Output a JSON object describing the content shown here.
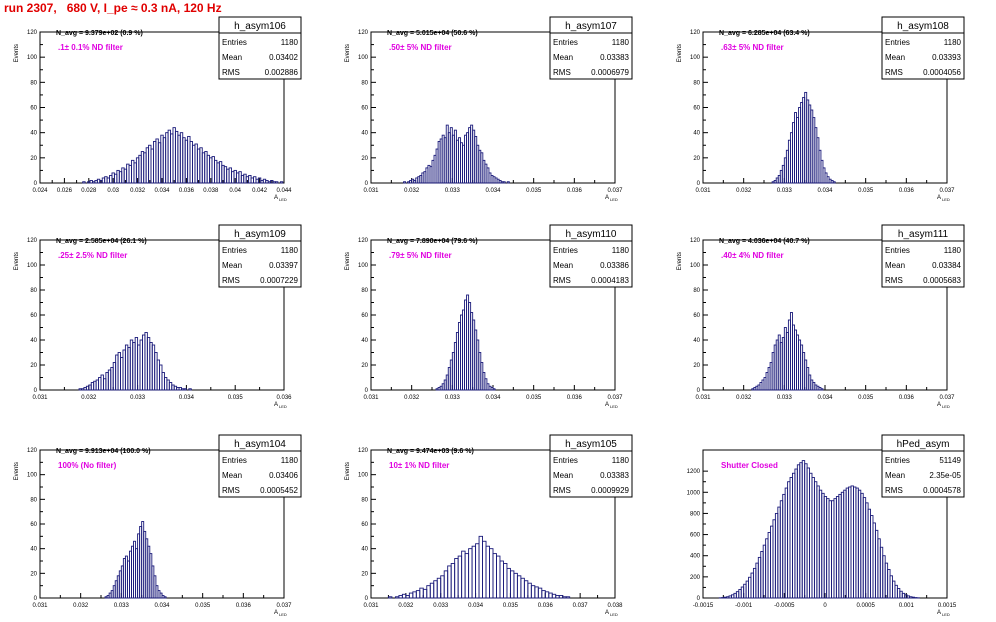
{
  "run_title": "run 2307,   680 V, I_pe ≈ 0.3 nA, 120 Hz",
  "colors": {
    "hist_line": "#1a1a7a",
    "title_red": "#e00000",
    "magenta": "#e000e0",
    "axis": "#000000"
  },
  "stat_labels": {
    "entries": "Entries",
    "mean": "Mean",
    "rms": "RMS"
  },
  "chart_data": [
    {
      "type": "bar",
      "hist_name": "h_asym106",
      "navg": "N_avg = 9.379e+02 (0.9 %)",
      "filter_label": ".1± 0.1% ND filter",
      "stats": {
        "entries": "1180",
        "mean": "0.03402",
        "rms": "0.002886"
      },
      "ylabel": "Events",
      "xlabel": "A",
      "xlabel_sub": "LED",
      "xlim": [
        0.024,
        0.044
      ],
      "ylim": [
        0,
        120
      ],
      "xticks": [
        "0.024",
        "0.026",
        "0.028",
        "0.03",
        "0.032",
        "0.034",
        "0.036",
        "0.038",
        "0.04",
        "0.042",
        "0.044"
      ],
      "yticks": [
        "0",
        "20",
        "40",
        "60",
        "80",
        "100",
        "120"
      ],
      "bin_start": 0.0275,
      "bin_width": 0.0002,
      "values": [
        1,
        0,
        1,
        2,
        1,
        2,
        3,
        2,
        4,
        5,
        4,
        6,
        8,
        7,
        10,
        9,
        12,
        11,
        15,
        14,
        18,
        16,
        20,
        22,
        25,
        24,
        28,
        30,
        27,
        33,
        35,
        32,
        38,
        36,
        40,
        42,
        39,
        44,
        41,
        38,
        40,
        36,
        34,
        37,
        33,
        30,
        31,
        27,
        28,
        24,
        25,
        22,
        20,
        21,
        18,
        16,
        17,
        14,
        13,
        11,
        12,
        9,
        10,
        8,
        9,
        6,
        7,
        5,
        6,
        4,
        5,
        3,
        4,
        2,
        3,
        2,
        1,
        2,
        1,
        1,
        0,
        1
      ]
    },
    {
      "type": "bar",
      "hist_name": "h_asym107",
      "navg": "N_avg = 5.015e+04 (50.6 %)",
      "filter_label": ".50± 5% ND filter",
      "stats": {
        "entries": "1180",
        "mean": "0.03383",
        "rms": "0.0006979"
      },
      "ylabel": "Events",
      "xlabel": "A",
      "xlabel_sub": "LED",
      "xlim": [
        0.031,
        0.037
      ],
      "ylim": [
        0,
        120
      ],
      "xticks": [
        "0.031",
        "0.032",
        "0.033",
        "0.034",
        "0.035",
        "0.036",
        "0.037"
      ],
      "yticks": [
        "0",
        "20",
        "40",
        "60",
        "80",
        "100",
        "120"
      ],
      "bin_start": 0.0318,
      "bin_width": 5e-05,
      "values": [
        1,
        0,
        1,
        2,
        3,
        2,
        4,
        5,
        6,
        8,
        9,
        12,
        14,
        13,
        18,
        22,
        27,
        33,
        35,
        38,
        36,
        46,
        40,
        44,
        38,
        42,
        34,
        36,
        32,
        30,
        38,
        40,
        44,
        46,
        42,
        37,
        30,
        26,
        24,
        18,
        15,
        12,
        8,
        6,
        5,
        4,
        3,
        2,
        1,
        1,
        0,
        1
      ]
    },
    {
      "type": "bar",
      "hist_name": "h_asym108",
      "navg": "N_avg = 6.285e+04 (63.4 %)",
      "filter_label": ".63± 5% ND filter",
      "stats": {
        "entries": "1180",
        "mean": "0.03393",
        "rms": "0.0004056"
      },
      "ylabel": "Events",
      "xlabel": "A",
      "xlabel_sub": "LED",
      "xlim": [
        0.031,
        0.037
      ],
      "ylim": [
        0,
        120
      ],
      "xticks": [
        "0.031",
        "0.032",
        "0.033",
        "0.034",
        "0.035",
        "0.036",
        "0.037"
      ],
      "yticks": [
        "0",
        "20",
        "40",
        "60",
        "80",
        "100",
        "120"
      ],
      "bin_start": 0.0327,
      "bin_width": 5e-05,
      "values": [
        1,
        2,
        4,
        6,
        10,
        14,
        20,
        26,
        34,
        40,
        48,
        56,
        52,
        60,
        64,
        68,
        72,
        66,
        62,
        58,
        52,
        44,
        36,
        26,
        18,
        12,
        8,
        5,
        3,
        2,
        1
      ]
    },
    {
      "type": "bar",
      "hist_name": "h_asym109",
      "navg": "N_avg = 2.585e+04 (26.1 %)",
      "filter_label": ".25± 2.5% ND filter",
      "stats": {
        "entries": "1180",
        "mean": "0.03397",
        "rms": "0.0007229"
      },
      "ylabel": "Events",
      "xlabel": "A",
      "xlabel_sub": "LED",
      "xlim": [
        0.031,
        0.036
      ],
      "ylim": [
        0,
        120
      ],
      "xticks": [
        "0.031",
        "0.032",
        "0.033",
        "0.034",
        "0.035",
        "0.036"
      ],
      "yticks": [
        "0",
        "20",
        "40",
        "60",
        "80",
        "100",
        "120"
      ],
      "bin_start": 0.0318,
      "bin_width": 5e-05,
      "values": [
        1,
        1,
        2,
        3,
        4,
        6,
        7,
        8,
        10,
        12,
        9,
        14,
        16,
        18,
        22,
        28,
        30,
        26,
        32,
        36,
        34,
        40,
        38,
        42,
        36,
        40,
        44,
        46,
        42,
        38,
        36,
        30,
        24,
        20,
        14,
        10,
        8,
        6,
        4,
        3,
        2,
        2,
        1,
        1,
        0,
        1
      ]
    },
    {
      "type": "bar",
      "hist_name": "h_asym110",
      "navg": "N_avg = 7.890e+04 (79.6 %)",
      "filter_label": ".79± 5% ND filter",
      "stats": {
        "entries": "1180",
        "mean": "0.03386",
        "rms": "0.0004183"
      },
      "ylabel": "Events",
      "xlabel": "A",
      "xlabel_sub": "LED",
      "xlim": [
        0.031,
        0.037
      ],
      "ylim": [
        0,
        120
      ],
      "xticks": [
        "0.031",
        "0.032",
        "0.033",
        "0.034",
        "0.035",
        "0.036",
        "0.037"
      ],
      "yticks": [
        "0",
        "20",
        "40",
        "60",
        "80",
        "100",
        "120"
      ],
      "bin_start": 0.0326,
      "bin_width": 5e-05,
      "values": [
        1,
        2,
        3,
        5,
        8,
        12,
        18,
        24,
        30,
        38,
        46,
        54,
        60,
        64,
        72,
        76,
        70,
        62,
        56,
        48,
        40,
        30,
        22,
        14,
        9,
        5,
        3,
        2,
        1
      ]
    },
    {
      "type": "bar",
      "hist_name": "h_asym111",
      "navg": "N_avg = 4.036e+04 (40.7 %)",
      "filter_label": ".40± 4% ND filter",
      "stats": {
        "entries": "1180",
        "mean": "0.03384",
        "rms": "0.0005683"
      },
      "ylabel": "Events",
      "xlabel": "A",
      "xlabel_sub": "LED",
      "xlim": [
        0.031,
        0.037
      ],
      "ylim": [
        0,
        120
      ],
      "xticks": [
        "0.031",
        "0.032",
        "0.033",
        "0.034",
        "0.035",
        "0.036",
        "0.037"
      ],
      "yticks": [
        "0",
        "20",
        "40",
        "60",
        "80",
        "100",
        "120"
      ],
      "bin_start": 0.0322,
      "bin_width": 5e-05,
      "values": [
        1,
        2,
        3,
        4,
        6,
        8,
        10,
        14,
        18,
        22,
        30,
        36,
        40,
        44,
        38,
        42,
        50,
        46,
        56,
        62,
        52,
        48,
        44,
        40,
        36,
        30,
        24,
        18,
        12,
        8,
        6,
        4,
        3,
        2,
        1
      ]
    },
    {
      "type": "bar",
      "hist_name": "h_asym104",
      "navg": "N_avg = 9.913e+04 (100.0 %)",
      "filter_label": "100% (No filter)",
      "stats": {
        "entries": "1180",
        "mean": "0.03406",
        "rms": "0.0005452"
      },
      "ylabel": "Events",
      "xlabel": "A",
      "xlabel_sub": "LED",
      "xlim": [
        0.031,
        0.037
      ],
      "ylim": [
        0,
        120
      ],
      "xticks": [
        "0.031",
        "0.032",
        "0.033",
        "0.034",
        "0.035",
        "0.036",
        "0.037"
      ],
      "yticks": [
        "0",
        "20",
        "40",
        "60",
        "80",
        "100",
        "120"
      ],
      "bin_start": 0.0326,
      "bin_width": 5e-05,
      "values": [
        1,
        2,
        4,
        6,
        10,
        14,
        18,
        22,
        26,
        32,
        34,
        30,
        38,
        42,
        46,
        40,
        52,
        58,
        62,
        54,
        48,
        42,
        36,
        26,
        18,
        10,
        6,
        4,
        2,
        1
      ]
    },
    {
      "type": "bar",
      "hist_name": "h_asym105",
      "navg": "N_avg = 9.474e+03 (9.6 %)",
      "filter_label": "10± 1% ND filter",
      "stats": {
        "entries": "1180",
        "mean": "0.03383",
        "rms": "0.0009929"
      },
      "ylabel": "Events",
      "xlabel": "A",
      "xlabel_sub": "LED",
      "xlim": [
        0.031,
        0.038
      ],
      "ylim": [
        0,
        120
      ],
      "xticks": [
        "0.031",
        "0.032",
        "0.033",
        "0.034",
        "0.035",
        "0.036",
        "0.037",
        "0.038"
      ],
      "yticks": [
        "0",
        "20",
        "40",
        "60",
        "80",
        "100",
        "120"
      ],
      "bin_start": 0.0315,
      "bin_width": 0.0001,
      "values": [
        1,
        0,
        1,
        2,
        3,
        2,
        4,
        5,
        6,
        8,
        7,
        10,
        12,
        14,
        16,
        18,
        22,
        26,
        28,
        32,
        34,
        38,
        36,
        40,
        42,
        44,
        50,
        46,
        42,
        40,
        36,
        34,
        30,
        28,
        24,
        22,
        20,
        18,
        16,
        14,
        12,
        10,
        9,
        8,
        6,
        5,
        4,
        3,
        2,
        2,
        1,
        1
      ]
    },
    {
      "type": "bar",
      "hist_name": "hPed_asym",
      "navg": "",
      "filter_label": "Shutter Closed",
      "stats": {
        "entries": "51149",
        "mean": "2.35e-05",
        "rms": "0.0004578"
      },
      "ylabel": "",
      "xlabel": "A",
      "xlabel_sub": "LED",
      "xlim": [
        -0.0015,
        0.0015
      ],
      "ylim": [
        0,
        1400
      ],
      "xticks": [
        "-0.0015",
        "-0.001",
        "-0.0005",
        "0",
        "0.0005",
        "0.001",
        "0.0015"
      ],
      "yticks": [
        "0",
        "200",
        "400",
        "600",
        "800",
        "1000",
        "1200"
      ],
      "bin_start": -0.0013,
      "bin_width": 3e-05,
      "values": [
        2,
        4,
        8,
        12,
        20,
        30,
        44,
        60,
        80,
        104,
        130,
        160,
        196,
        236,
        280,
        330,
        384,
        440,
        500,
        560,
        620,
        680,
        740,
        800,
        860,
        920,
        980,
        1040,
        1100,
        1140,
        1180,
        1220,
        1260,
        1280,
        1300,
        1270,
        1230,
        1180,
        1140,
        1100,
        1060,
        1020,
        990,
        960,
        940,
        920,
        920,
        940,
        960,
        980,
        1000,
        1020,
        1040,
        1050,
        1060,
        1050,
        1040,
        1020,
        990,
        950,
        900,
        840,
        780,
        710,
        640,
        560,
        480,
        400,
        330,
        270,
        210,
        160,
        120,
        90,
        64,
        44,
        30,
        20,
        12,
        8,
        4,
        2
      ]
    }
  ]
}
